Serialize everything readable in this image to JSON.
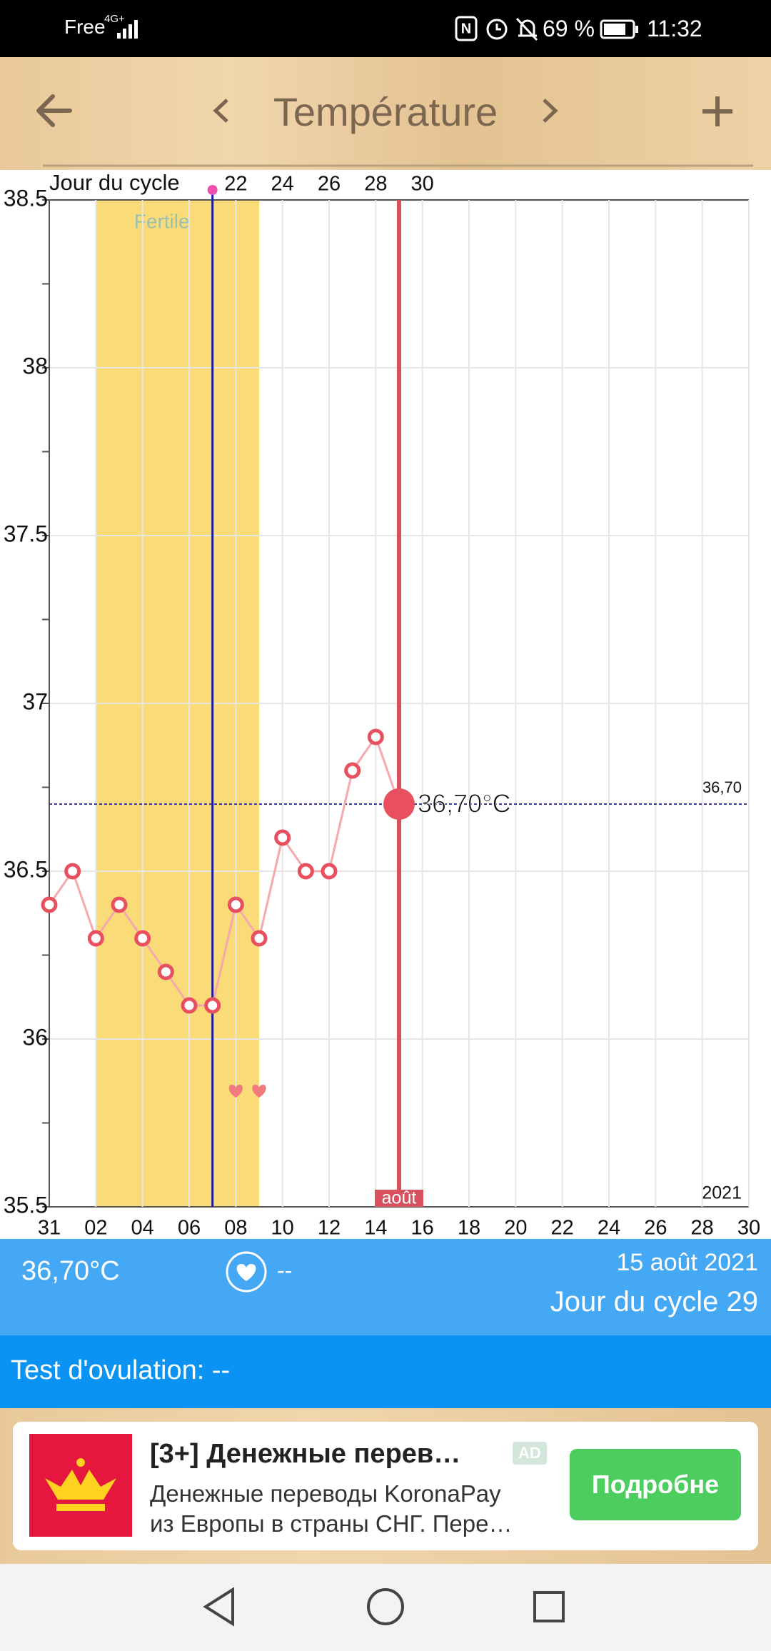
{
  "status_bar": {
    "carrier": "Free",
    "network": "4G+",
    "battery": "69 %",
    "time": "11:32"
  },
  "header": {
    "title": "Température"
  },
  "chart_data": {
    "type": "line",
    "categories": [
      "31",
      null,
      "02",
      null,
      "04",
      null,
      "06",
      null,
      "08",
      null,
      "10",
      null,
      "12",
      null,
      "14",
      null,
      "16",
      null,
      "18",
      null,
      "20",
      null,
      "22",
      null,
      "24",
      null,
      "26",
      null,
      "28",
      null,
      "30"
    ],
    "cycle_axis": {
      "title": "Jour du cycle",
      "labels": [
        null,
        null,
        null,
        null,
        null,
        null,
        null,
        null,
        "22",
        null,
        "24",
        null,
        "26",
        null,
        "28",
        null,
        "30",
        null,
        null,
        null,
        null,
        null,
        null,
        null,
        null,
        null,
        null,
        null,
        null,
        null,
        null
      ]
    },
    "values": [
      36.4,
      36.5,
      36.3,
      36.4,
      36.3,
      36.2,
      36.1,
      36.1,
      36.4,
      36.3,
      36.6,
      36.5,
      36.5,
      36.8,
      36.9,
      36.7,
      null,
      null,
      null,
      null,
      null,
      null,
      null,
      null,
      null,
      null,
      null,
      null,
      null,
      null,
      null
    ],
    "color": "#e8505f",
    "line_color": "#f5a9ae",
    "ylim": [
      35.5,
      38.5
    ],
    "yticks": [
      35.5,
      36,
      36.5,
      37,
      37.5,
      38,
      38.5
    ],
    "grid": true,
    "fertile": {
      "label": "Fertile",
      "start": 2,
      "end": 9,
      "color": "#f9db78"
    },
    "ovulation_day": 7,
    "intercourse_days": [
      8,
      9
    ],
    "reference": {
      "value": 36.7,
      "label": "36,70"
    },
    "selected": {
      "index": 15,
      "label": "36,70°C",
      "month_label": "août"
    },
    "year_label": "2021"
  },
  "summary": {
    "temperature": "36,70°C",
    "heart_status": "--",
    "date": "15 août 2021",
    "cycle_day": "Jour du cycle 29",
    "ovulation_test": "Test d'ovulation: --"
  },
  "ad": {
    "title": "[3+] Денежные перев…",
    "badge": "AD",
    "line1": "Денежные переводы KoronaPay",
    "line2": "из Европы в страны СНГ. Пере…",
    "button": "Подробне"
  }
}
